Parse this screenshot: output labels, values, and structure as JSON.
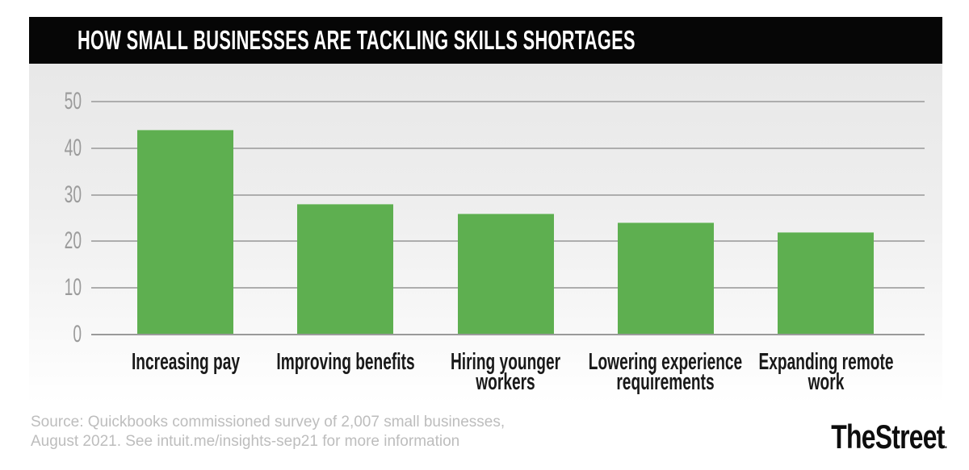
{
  "header": {
    "title": "HOW SMALL BUSINESSES ARE TACKLING SKILLS SHORTAGES"
  },
  "chart_data": {
    "type": "bar",
    "title": "HOW SMALL BUSINESSES ARE TACKLING SKILLS SHORTAGES",
    "categories": [
      "Increasing pay",
      "Improving benefits",
      "Hiring younger workers",
      "Lowering experience requirements",
      "Expanding remote work"
    ],
    "values": [
      44,
      28,
      26,
      24,
      22
    ],
    "xlabel": "",
    "ylabel": "",
    "ylim": [
      0,
      50
    ],
    "yticks": [
      0,
      10,
      20,
      30,
      40,
      50
    ],
    "grid": true,
    "legend": "none",
    "bar_color": "#5eaf50",
    "plot_background": [
      "#e8e8e8",
      "#ffffff"
    ]
  },
  "footer": {
    "source_line1": "Source: Quickbooks commissioned survey of 2,007 small businesses,",
    "source_line2": "August 2021.  See intuit.me/insights-sep21 for more information",
    "brand": "TheStreet",
    "brand_dot": "."
  },
  "colors": {
    "header_bg": "#060606",
    "title_text": "#ffffff",
    "bar": "#5eaf50",
    "gridline": "#adadad",
    "axis_line": "#9a9a9a",
    "tick_label": "#9b9b9b",
    "category_label": "#191919",
    "source_text": "#bdbdbd",
    "brand_text": "#0d0d0d"
  }
}
